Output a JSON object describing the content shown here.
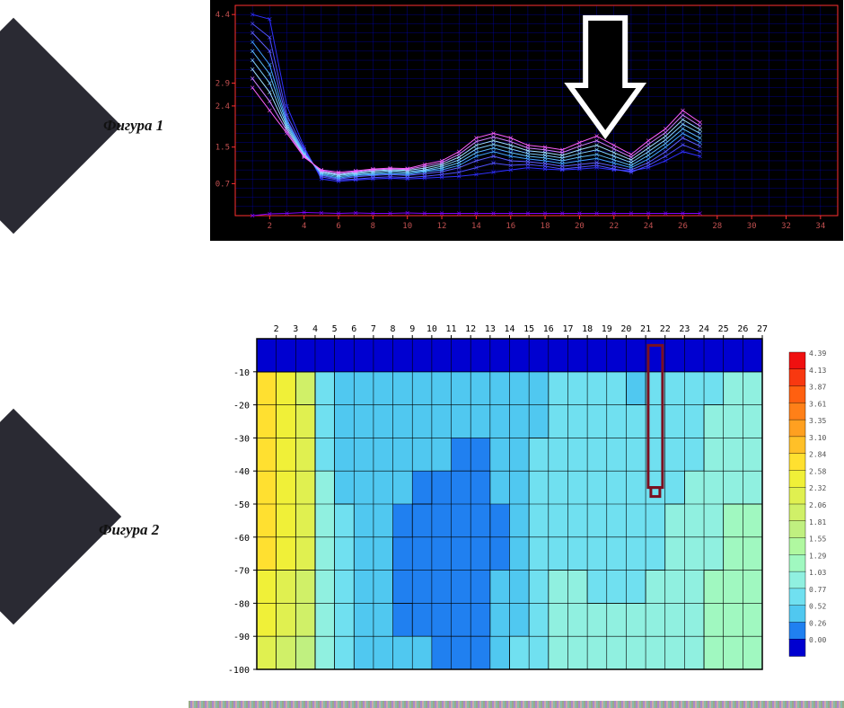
{
  "labels": {
    "fig1": "Фигура 1",
    "fig2": "Фигура 2"
  },
  "chevron_color": "#2a2a33",
  "chart1": {
    "type": "line",
    "background_color": "#000000",
    "grid_color": "#0000c0",
    "axis_color": "#ff3030",
    "tick_label_color": "#c05050",
    "tick_fontsize": 9,
    "xlim": [
      0,
      35
    ],
    "ylim": [
      0,
      4.6
    ],
    "xticks": [
      2,
      4,
      6,
      8,
      10,
      12,
      14,
      16,
      18,
      20,
      22,
      24,
      26,
      28,
      30,
      32,
      34
    ],
    "yticks": [
      0.7,
      1.5,
      2.4,
      2.9,
      4.4
    ],
    "series": [
      {
        "color": "#8000ff",
        "width": 1,
        "y": [
          0.0,
          0.04,
          0.05,
          0.07,
          0.06,
          0.05,
          0.06,
          0.05,
          0.05,
          0.06,
          0.05,
          0.05,
          0.05,
          0.05,
          0.05,
          0.05,
          0.05,
          0.05,
          0.05,
          0.05,
          0.05,
          0.05,
          0.05,
          0.05,
          0.05,
          0.05,
          0.05
        ]
      },
      {
        "color": "#3030ff",
        "width": 1,
        "y": [
          4.4,
          4.3,
          2.4,
          1.5,
          0.8,
          0.75,
          0.78,
          0.8,
          0.82,
          0.8,
          0.82,
          0.84,
          0.86,
          0.9,
          0.95,
          1.0,
          1.05,
          1.02,
          1.0,
          1.02,
          1.05,
          1.0,
          0.98,
          1.05,
          1.2,
          1.4,
          1.3
        ]
      },
      {
        "color": "#5050ff",
        "width": 1,
        "y": [
          4.2,
          3.9,
          2.2,
          1.45,
          0.85,
          0.78,
          0.8,
          0.83,
          0.85,
          0.83,
          0.86,
          0.9,
          0.95,
          1.05,
          1.15,
          1.1,
          1.12,
          1.08,
          1.02,
          1.06,
          1.1,
          1.02,
          0.95,
          1.1,
          1.3,
          1.55,
          1.4
        ]
      },
      {
        "color": "#6060ff",
        "width": 1,
        "y": [
          4.0,
          3.6,
          2.1,
          1.4,
          0.88,
          0.8,
          0.85,
          0.88,
          0.9,
          0.88,
          0.92,
          0.96,
          1.05,
          1.2,
          1.3,
          1.2,
          1.18,
          1.14,
          1.08,
          1.12,
          1.16,
          1.08,
          1.0,
          1.16,
          1.4,
          1.7,
          1.52
        ]
      },
      {
        "color": "#40a0ff",
        "width": 1,
        "y": [
          3.8,
          3.3,
          2.05,
          1.38,
          0.9,
          0.82,
          0.88,
          0.9,
          0.92,
          0.9,
          0.96,
          1.0,
          1.1,
          1.3,
          1.4,
          1.3,
          1.24,
          1.2,
          1.14,
          1.2,
          1.25,
          1.15,
          1.05,
          1.24,
          1.5,
          1.8,
          1.6
        ]
      },
      {
        "color": "#60c0ff",
        "width": 1,
        "y": [
          3.6,
          3.1,
          2.0,
          1.36,
          0.92,
          0.85,
          0.9,
          0.92,
          0.95,
          0.93,
          0.98,
          1.04,
          1.16,
          1.38,
          1.48,
          1.38,
          1.3,
          1.26,
          1.2,
          1.28,
          1.34,
          1.22,
          1.1,
          1.32,
          1.58,
          1.9,
          1.7
        ]
      },
      {
        "color": "#80d0ff",
        "width": 1,
        "y": [
          3.4,
          2.9,
          1.95,
          1.34,
          0.94,
          0.88,
          0.92,
          0.95,
          0.98,
          0.96,
          1.0,
          1.08,
          1.22,
          1.46,
          1.56,
          1.46,
          1.36,
          1.32,
          1.26,
          1.36,
          1.44,
          1.3,
          1.16,
          1.4,
          1.66,
          2.0,
          1.8
        ]
      },
      {
        "color": "#a0e0ff",
        "width": 1,
        "y": [
          3.2,
          2.7,
          1.9,
          1.32,
          0.96,
          0.9,
          0.94,
          0.98,
          1.0,
          0.99,
          1.04,
          1.12,
          1.28,
          1.54,
          1.64,
          1.54,
          1.42,
          1.38,
          1.32,
          1.44,
          1.54,
          1.38,
          1.22,
          1.48,
          1.74,
          2.1,
          1.88
        ]
      },
      {
        "color": "#d080ff",
        "width": 1,
        "y": [
          3.0,
          2.5,
          1.85,
          1.3,
          0.98,
          0.92,
          0.96,
          1.0,
          1.02,
          1.01,
          1.08,
          1.16,
          1.34,
          1.62,
          1.72,
          1.62,
          1.48,
          1.44,
          1.38,
          1.52,
          1.64,
          1.46,
          1.28,
          1.56,
          1.82,
          2.2,
          1.96
        ]
      },
      {
        "color": "#ff60ff",
        "width": 1,
        "y": [
          2.8,
          2.3,
          1.8,
          1.28,
          1.0,
          0.95,
          0.98,
          1.02,
          1.04,
          1.03,
          1.12,
          1.2,
          1.4,
          1.7,
          1.8,
          1.7,
          1.54,
          1.5,
          1.44,
          1.6,
          1.74,
          1.54,
          1.34,
          1.64,
          1.9,
          2.3,
          2.04
        ]
      }
    ],
    "arrow": {
      "x": 21.5,
      "stroke": "#ffffff",
      "stroke_width": 6,
      "fill": "#000000"
    }
  },
  "chart2": {
    "type": "heatmap",
    "background_color": "#ffffff",
    "grid_color": "#000000",
    "tick_label_color": "#000000",
    "tick_fontsize": 10,
    "xlim": [
      1,
      27
    ],
    "ylim": [
      -100,
      0
    ],
    "xticks": [
      2,
      3,
      4,
      5,
      6,
      7,
      8,
      9,
      10,
      11,
      12,
      13,
      14,
      15,
      16,
      17,
      18,
      19,
      20,
      21,
      22,
      23,
      24,
      25,
      26,
      27
    ],
    "yticks": [
      -10,
      -20,
      -30,
      -40,
      -50,
      -60,
      -70,
      -80,
      -90,
      -100
    ],
    "colorbar": {
      "values": [
        4.39,
        4.13,
        3.87,
        3.61,
        3.35,
        3.1,
        2.84,
        2.58,
        2.32,
        2.06,
        1.81,
        1.55,
        1.29,
        1.03,
        0.77,
        0.52,
        0.26,
        0.0
      ],
      "colors": [
        "#f01010",
        "#f83810",
        "#ff6010",
        "#ff8018",
        "#ffa020",
        "#ffc028",
        "#ffe030",
        "#f0f038",
        "#e0f050",
        "#d0f068",
        "#c0f080",
        "#b0f8a0",
        "#a0f8c0",
        "#90f0e0",
        "#70e0f0",
        "#50c8f0",
        "#2080f0",
        "#0000d0"
      ]
    },
    "grid_rows": 10,
    "grid_cols": 26,
    "cells": [
      [
        0.0,
        0.0,
        0.0,
        0.0,
        0.0,
        0.0,
        0.0,
        0.0,
        0.0,
        0.0,
        0.0,
        0.0,
        0.0,
        0.0,
        0.0,
        0.0,
        0.0,
        0.0,
        0.0,
        0.0,
        0.0,
        0.0,
        0.0,
        0.0,
        0.0,
        0.0
      ],
      [
        2.9,
        2.6,
        2.3,
        0.85,
        0.7,
        0.72,
        0.72,
        0.7,
        0.68,
        0.66,
        0.65,
        0.64,
        0.64,
        0.66,
        0.7,
        0.8,
        0.85,
        0.82,
        0.78,
        0.76,
        0.8,
        0.82,
        0.86,
        0.95,
        1.05,
        1.05
      ],
      [
        3.0,
        2.7,
        2.4,
        0.9,
        0.72,
        0.7,
        0.68,
        0.65,
        0.62,
        0.6,
        0.58,
        0.58,
        0.6,
        0.66,
        0.75,
        0.9,
        0.92,
        0.88,
        0.82,
        0.8,
        0.84,
        0.88,
        0.95,
        1.05,
        1.15,
        1.15
      ],
      [
        3.05,
        2.75,
        2.45,
        1.0,
        0.74,
        0.68,
        0.62,
        0.58,
        0.56,
        0.54,
        0.52,
        0.52,
        0.56,
        0.64,
        0.78,
        0.95,
        0.95,
        0.9,
        0.85,
        0.82,
        0.88,
        0.94,
        1.02,
        1.12,
        1.22,
        1.22
      ],
      [
        3.05,
        2.75,
        2.45,
        1.05,
        0.76,
        0.66,
        0.58,
        0.54,
        0.52,
        0.5,
        0.48,
        0.48,
        0.54,
        0.64,
        0.82,
        0.98,
        0.98,
        0.92,
        0.88,
        0.86,
        0.92,
        1.0,
        1.08,
        1.18,
        1.28,
        1.28
      ],
      [
        3.0,
        2.72,
        2.42,
        1.08,
        0.78,
        0.64,
        0.56,
        0.52,
        0.5,
        0.48,
        0.46,
        0.46,
        0.52,
        0.66,
        0.86,
        1.0,
        1.0,
        0.94,
        0.92,
        0.9,
        0.96,
        1.05,
        1.12,
        1.22,
        1.32,
        1.32
      ],
      [
        2.92,
        2.65,
        2.35,
        1.1,
        0.8,
        0.62,
        0.54,
        0.5,
        0.48,
        0.46,
        0.44,
        0.44,
        0.52,
        0.68,
        0.9,
        1.02,
        1.02,
        0.96,
        0.96,
        0.94,
        1.0,
        1.1,
        1.16,
        1.26,
        1.36,
        1.36
      ],
      [
        2.82,
        2.55,
        2.25,
        1.1,
        0.82,
        0.62,
        0.54,
        0.5,
        0.48,
        0.46,
        0.44,
        0.44,
        0.54,
        0.72,
        0.94,
        1.04,
        1.04,
        1.0,
        1.02,
        1.0,
        1.06,
        1.15,
        1.2,
        1.3,
        1.4,
        1.4
      ],
      [
        2.7,
        2.42,
        2.12,
        1.08,
        0.84,
        0.64,
        0.56,
        0.52,
        0.5,
        0.48,
        0.48,
        0.48,
        0.58,
        0.76,
        0.98,
        1.06,
        1.06,
        1.04,
        1.08,
        1.06,
        1.12,
        1.2,
        1.24,
        1.34,
        1.44,
        1.44
      ],
      [
        2.55,
        2.28,
        1.98,
        1.05,
        0.86,
        0.68,
        0.6,
        0.56,
        0.54,
        0.52,
        0.52,
        0.52,
        0.62,
        0.8,
        1.02,
        1.08,
        1.08,
        1.08,
        1.14,
        1.12,
        1.18,
        1.26,
        1.28,
        1.38,
        1.48,
        1.48
      ]
    ],
    "marker": {
      "x": 21.5,
      "y_top": -2,
      "y_bot": -45,
      "stroke": "#7a1020",
      "stroke_width": 3
    }
  }
}
